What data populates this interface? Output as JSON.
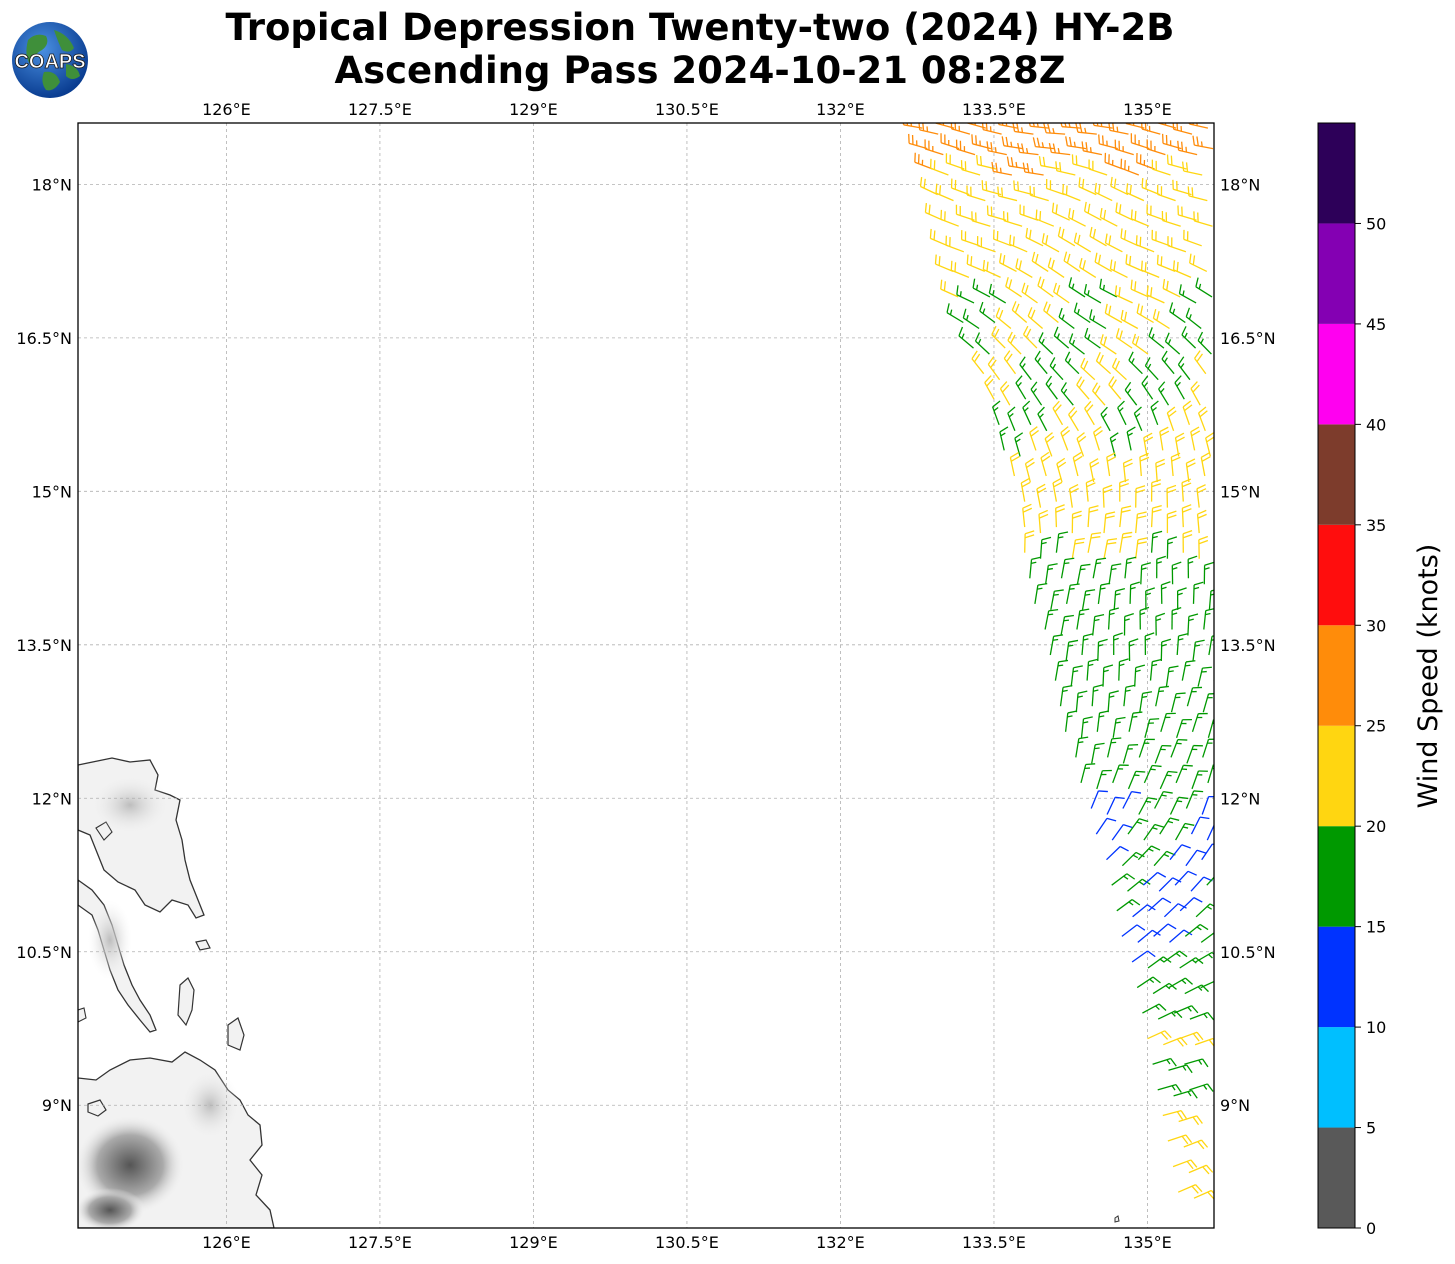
{
  "title": {
    "line1": "Tropical Depression Twenty-two (2024) HY-2B",
    "line2": "Ascending Pass 2024-10-21 08:28Z"
  },
  "logo": {
    "text": "COAPS",
    "icon": "coaps-globe-logo"
  },
  "map": {
    "lon_range": [
      124.55,
      135.65
    ],
    "lat_range": [
      7.8,
      18.6
    ],
    "lon_ticks": [
      {
        "value": 126.0,
        "label": "126°E"
      },
      {
        "value": 127.5,
        "label": "127.5°E"
      },
      {
        "value": 129.0,
        "label": "129°E"
      },
      {
        "value": 130.5,
        "label": "130.5°E"
      },
      {
        "value": 132.0,
        "label": "132°E"
      },
      {
        "value": 133.5,
        "label": "133.5°E"
      },
      {
        "value": 135.0,
        "label": "135°E"
      }
    ],
    "lat_ticks": [
      {
        "value": 18.0,
        "label": "18°N"
      },
      {
        "value": 16.5,
        "label": "16.5°N"
      },
      {
        "value": 15.0,
        "label": "15°N"
      },
      {
        "value": 13.5,
        "label": "13.5°N"
      },
      {
        "value": 12.0,
        "label": "12°N"
      },
      {
        "value": 10.5,
        "label": "10.5°N"
      },
      {
        "value": 9.0,
        "label": "9°N"
      }
    ],
    "gridlines": true,
    "land_region": "Philippines (Samar / Leyte area), lower-left corner"
  },
  "colorbar": {
    "label": "Wind Speed (knots)",
    "bins": [
      {
        "from": 0,
        "to": 5,
        "color": "#595959"
      },
      {
        "from": 5,
        "to": 10,
        "color": "#00bfff"
      },
      {
        "from": 10,
        "to": 15,
        "color": "#0033ff"
      },
      {
        "from": 15,
        "to": 20,
        "color": "#009900"
      },
      {
        "from": 20,
        "to": 25,
        "color": "#ffd611"
      },
      {
        "from": 25,
        "to": 30,
        "color": "#ff8c0a"
      },
      {
        "from": 30,
        "to": 35,
        "color": "#ff0d0d"
      },
      {
        "from": 35,
        "to": 40,
        "color": "#7d3c2c"
      },
      {
        "from": 40,
        "to": 45,
        "color": "#ff00f0"
      },
      {
        "from": 45,
        "to": 50,
        "color": "#8400b3"
      },
      {
        "from": 50,
        "to": 55,
        "color": "#2d0059"
      }
    ],
    "ticks": [
      {
        "value": 0,
        "label": "0"
      },
      {
        "value": 5,
        "label": "5"
      },
      {
        "value": 10,
        "label": "10"
      },
      {
        "value": 15,
        "label": "15"
      },
      {
        "value": 20,
        "label": "20"
      },
      {
        "value": 25,
        "label": "25"
      },
      {
        "value": 30,
        "label": "30"
      },
      {
        "value": 35,
        "label": "35"
      },
      {
        "value": 40,
        "label": "40"
      },
      {
        "value": 45,
        "label": "45"
      },
      {
        "value": 50,
        "label": "50"
      }
    ]
  },
  "wind_swath": {
    "instrument": "HY-2B",
    "rows": [
      {
        "lat": 18.55,
        "lon_west": 132.8,
        "lon_east": 135.65,
        "speed": 27,
        "dir": 280
      },
      {
        "lat": 18.35,
        "lon_west": 132.85,
        "lon_east": 135.65,
        "speed": 26,
        "dir": 282
      },
      {
        "lat": 18.15,
        "lon_west": 132.9,
        "lon_east": 135.65,
        "speed": 24,
        "dir": 285
      },
      {
        "lat": 17.9,
        "lon_west": 132.95,
        "lon_east": 135.65,
        "speed": 22,
        "dir": 290
      },
      {
        "lat": 17.65,
        "lon_west": 133.0,
        "lon_east": 135.65,
        "speed": 22,
        "dir": 292
      },
      {
        "lat": 17.4,
        "lon_west": 133.05,
        "lon_east": 135.65,
        "speed": 21,
        "dir": 295
      },
      {
        "lat": 17.15,
        "lon_west": 133.1,
        "lon_east": 135.65,
        "speed": 21,
        "dir": 298
      },
      {
        "lat": 16.9,
        "lon_west": 133.15,
        "lon_east": 135.65,
        "speed": 20,
        "dir": 300
      },
      {
        "lat": 16.65,
        "lon_west": 133.2,
        "lon_east": 135.65,
        "speed": 20,
        "dir": 305
      },
      {
        "lat": 16.4,
        "lon_west": 133.3,
        "lon_east": 135.65,
        "speed": 19,
        "dir": 310
      },
      {
        "lat": 16.15,
        "lon_west": 133.4,
        "lon_east": 135.65,
        "speed": 19,
        "dir": 318
      },
      {
        "lat": 15.9,
        "lon_west": 133.5,
        "lon_east": 135.65,
        "speed": 19,
        "dir": 325
      },
      {
        "lat": 15.65,
        "lon_west": 133.55,
        "lon_east": 135.65,
        "speed": 19,
        "dir": 335
      },
      {
        "lat": 15.4,
        "lon_west": 133.6,
        "lon_east": 135.65,
        "speed": 20,
        "dir": 345
      },
      {
        "lat": 15.15,
        "lon_west": 133.7,
        "lon_east": 135.65,
        "speed": 21,
        "dir": 350
      },
      {
        "lat": 14.9,
        "lon_west": 133.8,
        "lon_east": 135.65,
        "speed": 21,
        "dir": 355
      },
      {
        "lat": 14.65,
        "lon_west": 133.8,
        "lon_east": 135.65,
        "speed": 21,
        "dir": 0
      },
      {
        "lat": 14.4,
        "lon_west": 133.8,
        "lon_east": 135.65,
        "speed": 20,
        "dir": 5
      },
      {
        "lat": 14.15,
        "lon_west": 133.85,
        "lon_east": 135.65,
        "speed": 18,
        "dir": 5
      },
      {
        "lat": 13.9,
        "lon_west": 133.9,
        "lon_east": 135.65,
        "speed": 17,
        "dir": 5
      },
      {
        "lat": 13.65,
        "lon_west": 134.0,
        "lon_east": 135.65,
        "speed": 17,
        "dir": 5
      },
      {
        "lat": 13.4,
        "lon_west": 134.05,
        "lon_east": 135.65,
        "speed": 16,
        "dir": 5
      },
      {
        "lat": 13.15,
        "lon_west": 134.1,
        "lon_east": 135.65,
        "speed": 16,
        "dir": 8
      },
      {
        "lat": 12.9,
        "lon_west": 134.15,
        "lon_east": 135.65,
        "speed": 16,
        "dir": 10
      },
      {
        "lat": 12.65,
        "lon_west": 134.2,
        "lon_east": 135.65,
        "speed": 16,
        "dir": 12
      },
      {
        "lat": 12.4,
        "lon_west": 134.3,
        "lon_east": 135.65,
        "speed": 16,
        "dir": 15
      },
      {
        "lat": 12.15,
        "lon_west": 134.35,
        "lon_east": 135.6,
        "speed": 16,
        "dir": 18
      },
      {
        "lat": 11.9,
        "lon_west": 134.45,
        "lon_east": 135.6,
        "speed": 15,
        "dir": 22
      },
      {
        "lat": 11.65,
        "lon_west": 134.5,
        "lon_east": 135.6,
        "speed": 15,
        "dir": 30
      },
      {
        "lat": 11.4,
        "lon_west": 134.6,
        "lon_east": 135.6,
        "speed": 14,
        "dir": 40
      },
      {
        "lat": 11.15,
        "lon_west": 134.65,
        "lon_east": 135.6,
        "speed": 14,
        "dir": 48
      },
      {
        "lat": 10.9,
        "lon_west": 134.7,
        "lon_east": 135.6,
        "speed": 14,
        "dir": 52
      },
      {
        "lat": 10.65,
        "lon_west": 134.75,
        "lon_east": 135.55,
        "speed": 14,
        "dir": 55
      },
      {
        "lat": 10.4,
        "lon_west": 134.85,
        "lon_east": 135.55,
        "speed": 15,
        "dir": 60
      },
      {
        "lat": 10.15,
        "lon_west": 134.9,
        "lon_east": 135.55,
        "speed": 17,
        "dir": 62
      },
      {
        "lat": 9.9,
        "lon_west": 134.95,
        "lon_east": 135.5,
        "speed": 18,
        "dir": 65
      },
      {
        "lat": 9.65,
        "lon_west": 135.0,
        "lon_east": 135.5,
        "speed": 21,
        "dir": 65
      },
      {
        "lat": 9.4,
        "lon_west": 135.05,
        "lon_east": 135.5,
        "speed": 19,
        "dir": 68
      },
      {
        "lat": 9.15,
        "lon_west": 135.1,
        "lon_east": 135.5,
        "speed": 18,
        "dir": 68
      },
      {
        "lat": 8.9,
        "lon_west": 135.15,
        "lon_east": 135.45,
        "speed": 21,
        "dir": 70
      },
      {
        "lat": 8.65,
        "lon_west": 135.2,
        "lon_east": 135.45,
        "speed": 22,
        "dir": 70
      },
      {
        "lat": 8.4,
        "lon_west": 135.25,
        "lon_east": 135.45,
        "speed": 22,
        "dir": 72
      },
      {
        "lat": 8.15,
        "lon_west": 135.3,
        "lon_east": 135.45,
        "speed": 22,
        "dir": 72
      }
    ]
  }
}
